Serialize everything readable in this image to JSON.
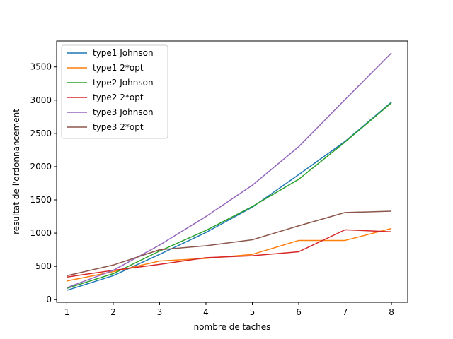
{
  "chart_data": {
    "type": "line",
    "title": "",
    "xlabel": "nombre de taches",
    "ylabel": "resultat de l'ordonnancement",
    "x": [
      1,
      2,
      3,
      4,
      5,
      6,
      7,
      8
    ],
    "xlim": [
      0.78,
      8.35
    ],
    "ylim": [
      -40,
      3890
    ],
    "xticks": [
      1,
      2,
      3,
      4,
      5,
      6,
      7,
      8
    ],
    "yticks": [
      0,
      500,
      1000,
      1500,
      2000,
      2500,
      3000,
      3500
    ],
    "grid": false,
    "legend_position": "upper left",
    "series": [
      {
        "name": "type1 Johnson",
        "color": "#1f77b4",
        "values": [
          140,
          360,
          680,
          1010,
          1390,
          1880,
          2380,
          2970
        ]
      },
      {
        "name": "type1 2*opt",
        "color": "#ff7f0e",
        "values": [
          280,
          420,
          580,
          620,
          680,
          890,
          890,
          1070
        ]
      },
      {
        "name": "type2 Johnson",
        "color": "#2ca02c",
        "values": [
          170,
          390,
          730,
          1040,
          1400,
          1810,
          2370,
          2960
        ]
      },
      {
        "name": "type2 2*opt",
        "color": "#d62728",
        "values": [
          340,
          440,
          530,
          630,
          660,
          720,
          1050,
          1020
        ]
      },
      {
        "name": "type3 Johnson",
        "color": "#9467bd",
        "values": [
          180,
          440,
          820,
          1250,
          1720,
          2300,
          3010,
          3710
        ]
      },
      {
        "name": "type3 2*opt",
        "color": "#8c564b",
        "values": [
          360,
          520,
          750,
          810,
          900,
          1110,
          1310,
          1330
        ]
      }
    ]
  }
}
